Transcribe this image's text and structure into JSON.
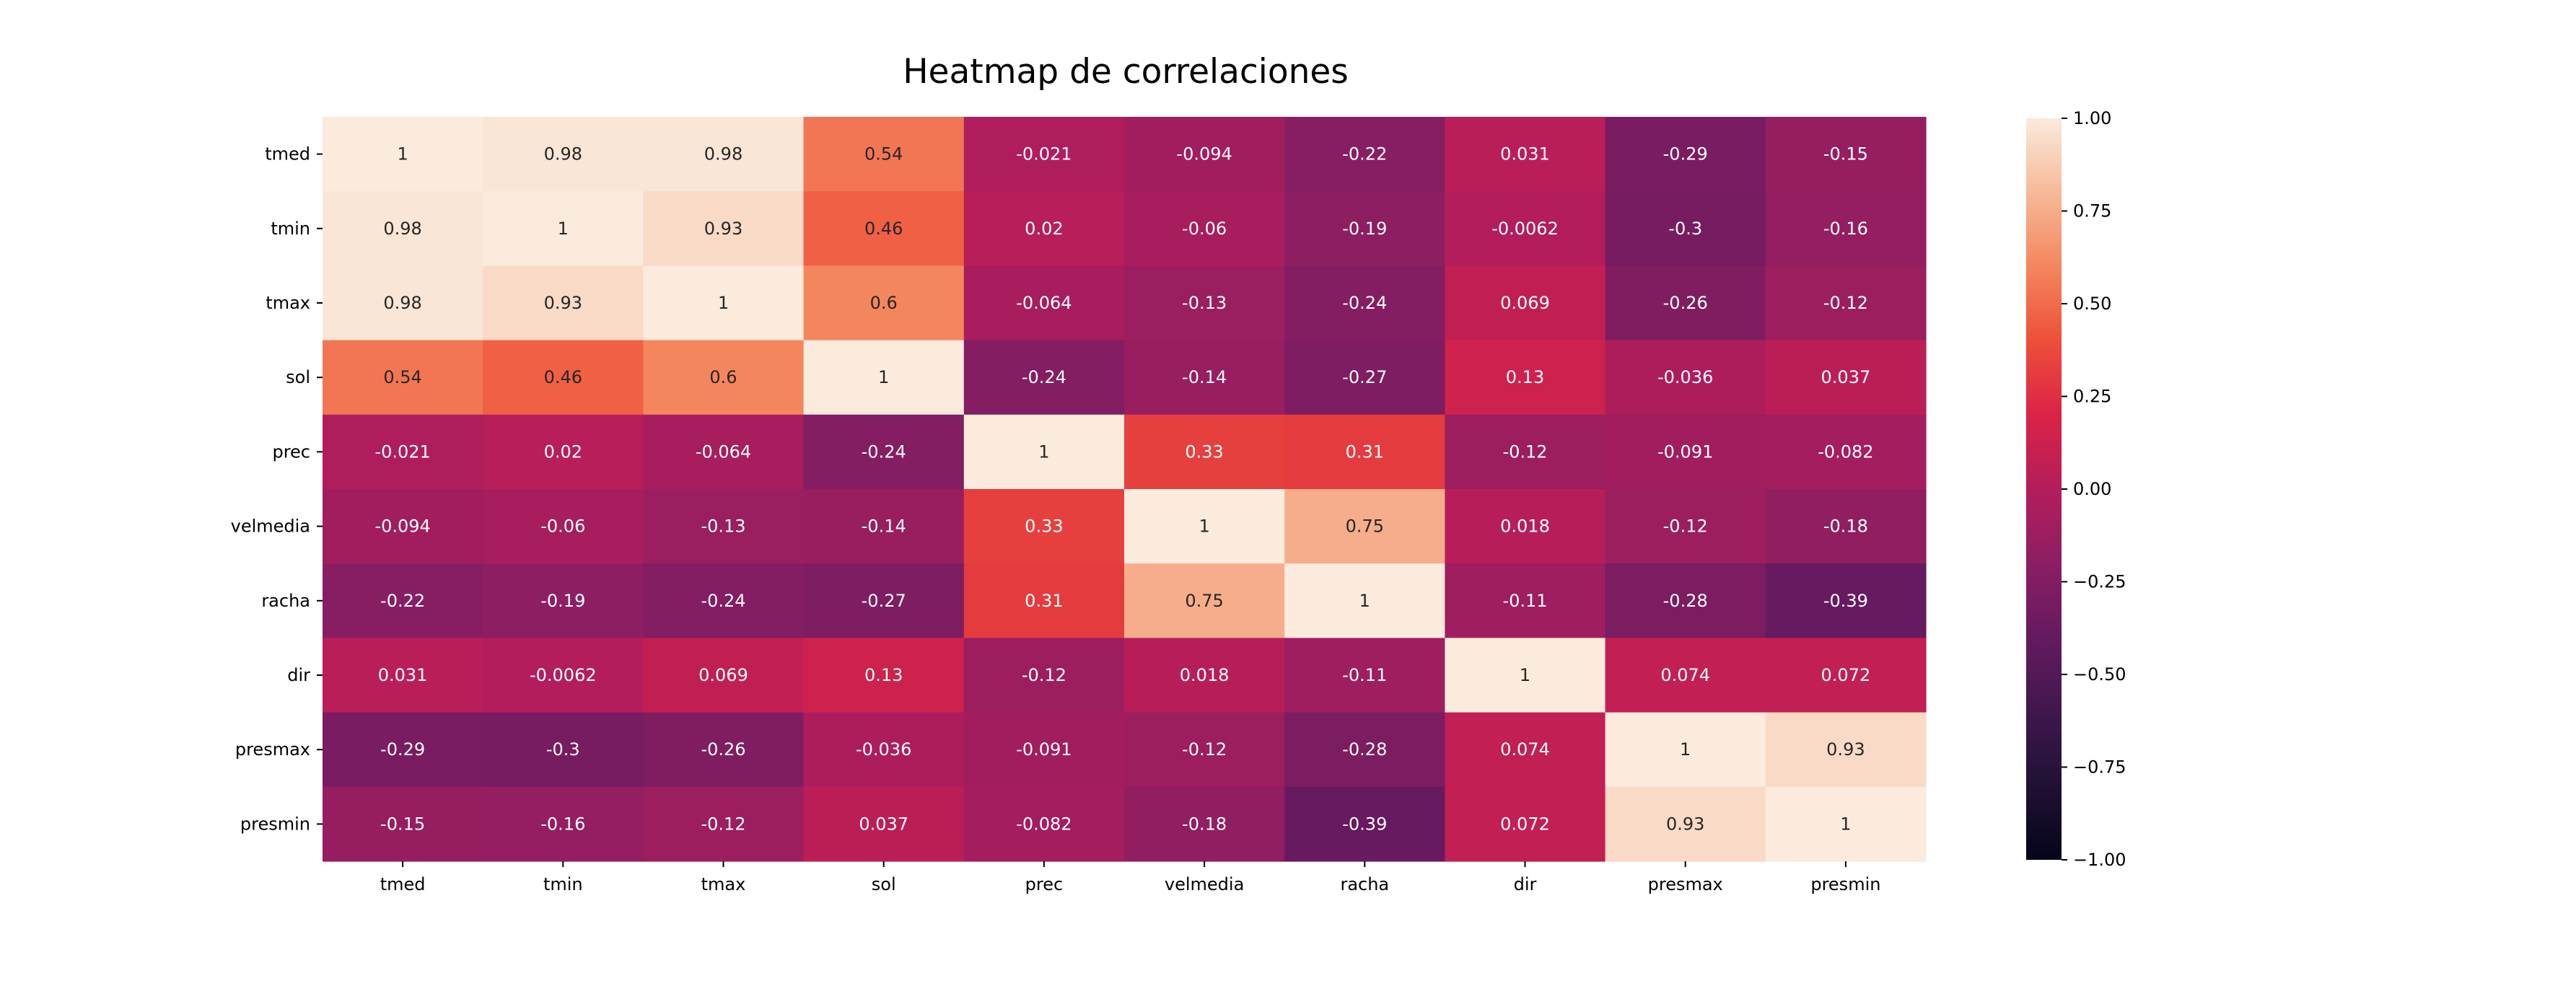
{
  "chart_data": {
    "type": "heatmap",
    "title": "Heatmap de correlaciones",
    "xlabel": "",
    "ylabel": "",
    "x_categories": [
      "tmed",
      "tmin",
      "tmax",
      "sol",
      "prec",
      "velmedia",
      "racha",
      "dir",
      "presmax",
      "presmin"
    ],
    "y_categories": [
      "tmed",
      "tmin",
      "tmax",
      "sol",
      "prec",
      "velmedia",
      "racha",
      "dir",
      "presmax",
      "presmin"
    ],
    "values": [
      [
        1,
        0.98,
        0.98,
        0.54,
        -0.021,
        -0.094,
        -0.22,
        0.031,
        -0.29,
        -0.15
      ],
      [
        0.98,
        1,
        0.93,
        0.46,
        0.02,
        -0.06,
        -0.19,
        -0.0062,
        -0.3,
        -0.16
      ],
      [
        0.98,
        0.93,
        1,
        0.6,
        -0.064,
        -0.13,
        -0.24,
        0.069,
        -0.26,
        -0.12
      ],
      [
        0.54,
        0.46,
        0.6,
        1,
        -0.24,
        -0.14,
        -0.27,
        0.13,
        -0.036,
        0.037
      ],
      [
        -0.021,
        0.02,
        -0.064,
        -0.24,
        1,
        0.33,
        0.31,
        -0.12,
        -0.091,
        -0.082
      ],
      [
        -0.094,
        -0.06,
        -0.13,
        -0.14,
        0.33,
        1,
        0.75,
        0.018,
        -0.12,
        -0.18
      ],
      [
        -0.22,
        -0.19,
        -0.24,
        -0.27,
        0.31,
        0.75,
        1,
        -0.11,
        -0.28,
        -0.39
      ],
      [
        0.031,
        -0.0062,
        0.069,
        0.13,
        -0.12,
        0.018,
        -0.11,
        1,
        0.074,
        0.072
      ],
      [
        -0.29,
        -0.3,
        -0.26,
        -0.036,
        -0.091,
        -0.12,
        -0.28,
        0.074,
        1,
        0.93
      ],
      [
        -0.15,
        -0.16,
        -0.12,
        0.037,
        -0.082,
        -0.18,
        -0.39,
        0.072,
        0.93,
        1
      ]
    ],
    "value_range": [
      -1,
      1
    ],
    "annotated": true,
    "colormap": "rocket",
    "colorbar": {
      "ticks": [
        1.0,
        0.75,
        0.5,
        0.25,
        0.0,
        -0.25,
        -0.5,
        -0.75,
        -1.0
      ],
      "tick_labels": [
        "1.00",
        "0.75",
        "0.50",
        "0.25",
        "0.00",
        "−0.25",
        "−0.50",
        "−0.75",
        "−1.00"
      ],
      "placement": "right"
    },
    "grid": false
  }
}
